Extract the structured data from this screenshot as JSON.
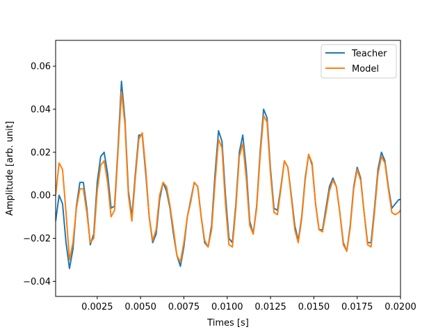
{
  "chart_data": {
    "type": "line",
    "title": "",
    "xlabel": "Times [s]",
    "ylabel": "Amplitude [arb. unit]",
    "xlim": [
      0.0001,
      0.02
    ],
    "ylim": [
      -0.047,
      0.072
    ],
    "x_ticks": [
      0.0025,
      0.005,
      0.0075,
      0.01,
      0.0125,
      0.015,
      0.0175,
      0.02
    ],
    "x_tick_labels": [
      "0.0025",
      "0.0050",
      "0.0075",
      "0.0100",
      "0.0125",
      "0.0150",
      "0.0175",
      "0.0200"
    ],
    "y_ticks": [
      -0.04,
      -0.02,
      0.0,
      0.02,
      0.04,
      0.06
    ],
    "y_tick_labels": [
      "−0.04",
      "−0.02",
      "0.00",
      "0.02",
      "0.04",
      "0.06"
    ],
    "grid": false,
    "legend_position": "top-right",
    "series": [
      {
        "name": "Teacher",
        "color": "#1f77b4",
        "x": [
          0.0001,
          0.0003,
          0.0005,
          0.0007,
          0.0009,
          0.0011,
          0.0013,
          0.0015,
          0.0017,
          0.0019,
          0.0021,
          0.0023,
          0.0025,
          0.0027,
          0.0029,
          0.0031,
          0.0033,
          0.0035,
          0.0037,
          0.0039,
          0.0041,
          0.0043,
          0.0045,
          0.0047,
          0.0049,
          0.0051,
          0.0053,
          0.0055,
          0.0057,
          0.0059,
          0.0061,
          0.0063,
          0.0065,
          0.0067,
          0.0069,
          0.0071,
          0.0073,
          0.0075,
          0.0077,
          0.0079,
          0.0081,
          0.0083,
          0.0085,
          0.0087,
          0.0089,
          0.0091,
          0.0093,
          0.0095,
          0.0097,
          0.0099,
          0.0101,
          0.0103,
          0.0105,
          0.0107,
          0.0109,
          0.0111,
          0.0113,
          0.0115,
          0.0117,
          0.0119,
          0.0121,
          0.0123,
          0.0125,
          0.0127,
          0.0129,
          0.0131,
          0.0133,
          0.0135,
          0.0137,
          0.0139,
          0.0141,
          0.0143,
          0.0145,
          0.0147,
          0.0149,
          0.0151,
          0.0153,
          0.0155,
          0.0157,
          0.0159,
          0.0161,
          0.0163,
          0.0165,
          0.0167,
          0.0169,
          0.0171,
          0.0173,
          0.0175,
          0.0177,
          0.0179,
          0.0181,
          0.0183,
          0.0185,
          0.0187,
          0.0189,
          0.0191,
          0.0193,
          0.0195,
          0.0197,
          0.0199,
          0.02
        ],
        "y": [
          -0.012,
          0.0,
          -0.004,
          -0.022,
          -0.034,
          -0.025,
          -0.005,
          0.006,
          0.006,
          -0.006,
          -0.023,
          -0.018,
          0.006,
          0.018,
          0.02,
          0.01,
          -0.006,
          -0.005,
          0.022,
          0.053,
          0.035,
          0.002,
          -0.01,
          0.01,
          0.028,
          0.028,
          0.01,
          -0.01,
          -0.022,
          -0.018,
          -0.002,
          0.006,
          0.002,
          -0.006,
          -0.018,
          -0.028,
          -0.033,
          -0.024,
          -0.01,
          -0.002,
          0.006,
          0.004,
          -0.01,
          -0.022,
          -0.024,
          -0.014,
          0.01,
          0.03,
          0.025,
          0.0,
          -0.02,
          -0.022,
          -0.004,
          0.02,
          0.028,
          0.012,
          -0.012,
          -0.018,
          -0.005,
          0.02,
          0.04,
          0.036,
          0.012,
          -0.006,
          -0.007,
          0.004,
          0.016,
          0.013,
          0.0,
          -0.014,
          -0.021,
          -0.01,
          0.008,
          0.019,
          0.014,
          -0.004,
          -0.016,
          -0.016,
          -0.006,
          0.004,
          0.008,
          0.004,
          -0.008,
          -0.022,
          -0.026,
          -0.014,
          0.004,
          0.013,
          0.008,
          -0.008,
          -0.022,
          -0.022,
          -0.006,
          0.012,
          0.02,
          0.016,
          0.004,
          -0.006,
          -0.004,
          -0.002,
          -0.002
        ]
      },
      {
        "name": "Model",
        "color": "#ff7f0e",
        "x": [
          0.0001,
          0.0003,
          0.0005,
          0.0007,
          0.0009,
          0.0011,
          0.0013,
          0.0015,
          0.0017,
          0.0019,
          0.0021,
          0.0023,
          0.0025,
          0.0027,
          0.0029,
          0.0031,
          0.0033,
          0.0035,
          0.0037,
          0.0039,
          0.0041,
          0.0043,
          0.0045,
          0.0047,
          0.0049,
          0.0051,
          0.0053,
          0.0055,
          0.0057,
          0.0059,
          0.0061,
          0.0063,
          0.0065,
          0.0067,
          0.0069,
          0.0071,
          0.0073,
          0.0075,
          0.0077,
          0.0079,
          0.0081,
          0.0083,
          0.0085,
          0.0087,
          0.0089,
          0.0091,
          0.0093,
          0.0095,
          0.0097,
          0.0099,
          0.0101,
          0.0103,
          0.0105,
          0.0107,
          0.0109,
          0.0111,
          0.0113,
          0.0115,
          0.0117,
          0.0119,
          0.0121,
          0.0123,
          0.0125,
          0.0127,
          0.0129,
          0.0131,
          0.0133,
          0.0135,
          0.0137,
          0.0139,
          0.0141,
          0.0143,
          0.0145,
          0.0147,
          0.0149,
          0.0151,
          0.0153,
          0.0155,
          0.0157,
          0.0159,
          0.0161,
          0.0163,
          0.0165,
          0.0167,
          0.0169,
          0.0171,
          0.0173,
          0.0175,
          0.0177,
          0.0179,
          0.0181,
          0.0183,
          0.0185,
          0.0187,
          0.0189,
          0.0191,
          0.0193,
          0.0195,
          0.0197,
          0.0199,
          0.02
        ],
        "y": [
          0.0,
          0.015,
          0.012,
          -0.008,
          -0.03,
          -0.022,
          -0.006,
          0.003,
          0.003,
          -0.008,
          -0.022,
          -0.02,
          0.002,
          0.014,
          0.016,
          0.006,
          -0.01,
          -0.007,
          0.02,
          0.048,
          0.033,
          0.0,
          -0.012,
          0.008,
          0.026,
          0.029,
          0.012,
          -0.01,
          -0.021,
          -0.016,
          0.0,
          0.006,
          0.004,
          -0.005,
          -0.016,
          -0.028,
          -0.031,
          -0.022,
          -0.01,
          -0.003,
          0.006,
          0.004,
          -0.01,
          -0.021,
          -0.024,
          -0.016,
          0.006,
          0.026,
          0.022,
          -0.004,
          -0.023,
          -0.024,
          -0.006,
          0.018,
          0.024,
          0.008,
          -0.014,
          -0.018,
          -0.006,
          0.018,
          0.037,
          0.034,
          0.01,
          -0.008,
          -0.009,
          0.003,
          0.016,
          0.013,
          -0.001,
          -0.016,
          -0.022,
          -0.011,
          0.007,
          0.019,
          0.015,
          -0.004,
          -0.016,
          -0.017,
          -0.008,
          0.002,
          0.007,
          0.004,
          -0.008,
          -0.023,
          -0.026,
          -0.015,
          0.003,
          0.012,
          0.007,
          -0.008,
          -0.023,
          -0.024,
          -0.008,
          0.01,
          0.018,
          0.015,
          0.003,
          -0.008,
          -0.009,
          -0.008,
          -0.007
        ]
      }
    ]
  }
}
